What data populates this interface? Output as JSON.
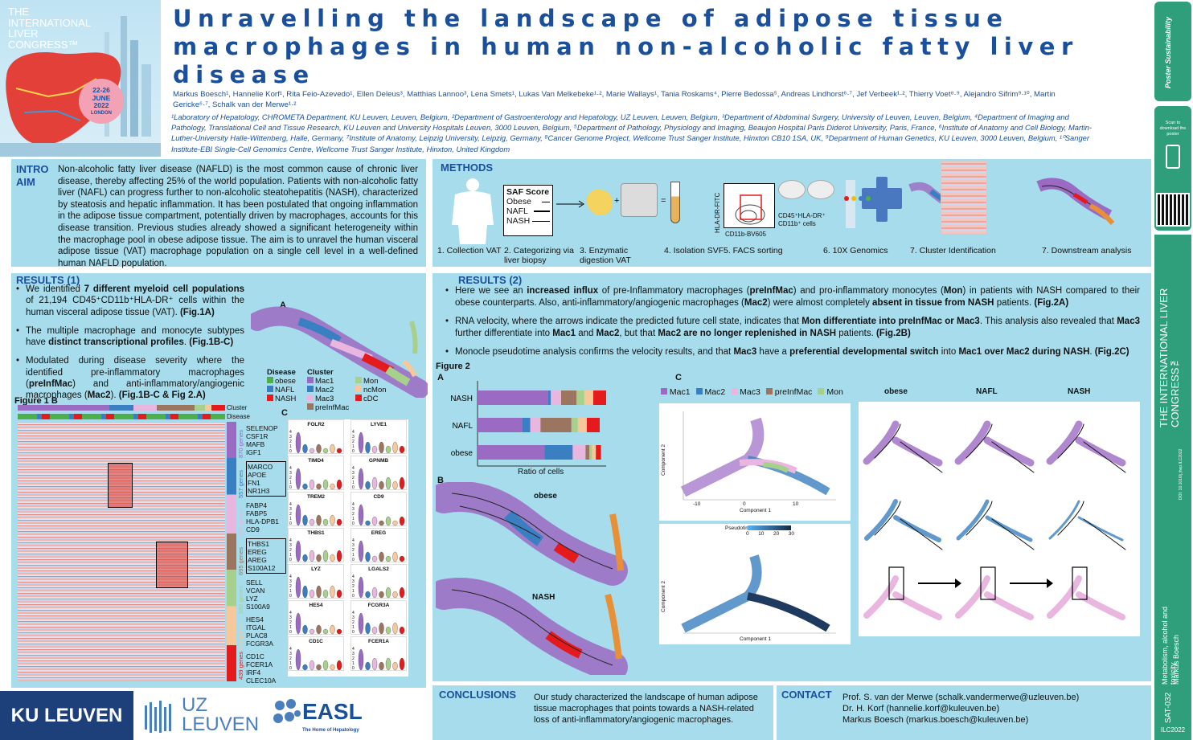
{
  "congress": {
    "line1": "THE",
    "line2": "INTERNATIONAL",
    "line3": "LIVER",
    "line4": "CONGRESS™",
    "dates": "22-26",
    "month": "JUNE",
    "year": "2022",
    "city": "LONDON"
  },
  "title": "Unravelling the landscape of adipose tissue macrophages in human non-alcoholic fatty liver disease",
  "authors": "Markus Boesch¹, Hannelie Korf¹, Rita Feio-Azevedo¹, Ellen Deleus³, Matthias Lannoo³, Lena Smets¹, Lukas Van Melkebeke¹·², Marie Wallays¹, Tania Roskams⁴, Pierre Bedossa⁵, Andreas Lindhorst⁶·⁷, Jef Verbeek¹·², Thierry Voet⁸·⁹, Alejandro Sifrim⁹·¹⁰, Martin Gericke⁶·⁷, Schalk van der Merwe¹·²",
  "affiliations": "¹Laboratory of Hepatology, CHROMETA Department, KU Leuven, Leuven, Belgium, ²Department of Gastroenterology and Hepatology, UZ Leuven, Leuven, Belgium, ³Department of Abdominal Surgery, University of Leuven, Leuven, Belgium, ⁴Department of Imaging and Pathology, Translational Cell and Tissue Research, KU Leuven and University Hospitals Leuven, 3000 Leuven, Belgium, ⁵Department of Pathology, Physiology and Imaging, Beaujon Hospital Paris Diderot University, Paris, France, ⁶Institute of Anatomy and Cell Biology, Martin-Luther-University Halle-Wittenberg, Halle, Germany, ⁷Institute of Anatomy, Leipzig University, Leipzig, Germany, ⁸Cancer Genome Project, Wellcome Trust Sanger Institute, Hinxton CB10 1SA, UK, ⁹Department of Human Genetics, KU Leuven, 3000 Leuven, Belgium, ¹⁰Sanger Institute-EBI Single-Cell Genomics Centre, Wellcome Trust Sanger Institute, Hinxton, United Kingdom",
  "sidebar": {
    "poster_brand": "Poster Sustainability",
    "scan_text": "Scan to download the poster",
    "congress_vertical": "THE INTERNATIONAL LIVER CONGRESS™",
    "doi": "DOI: 10.1016/j.jhep.ILC2022",
    "topic": "Metabolism, alcohol and toxicity",
    "author": "Markus Boesch",
    "code": "SAT-032",
    "ilc": "ILC2022"
  },
  "intro": {
    "heading1": "INTRO",
    "heading2": "AIM",
    "text": "Non-alcoholic fatty liver disease (NAFLD) is the most common cause of chronic liver disease, thereby affecting 25% of the world population. Patients with non-alcoholic fatty liver (NAFL) can progress further to non-alcoholic steatohepatitis (NASH), characterized by steatosis and hepatic inflammation. It has been postulated that ongoing inflammation in the adipose tissue compartment, potentially driven by macrophages, accounts for this disease transition. Previous studies already showed a significant heterogeneity within the macrophage pool in obese adipose tissue. The aim is to unravel the human visceral adipose tissue (VAT) macrophage population on a single cell level in a well-defined human NAFLD population."
  },
  "methods": {
    "heading": "METHODS",
    "saf_title": "SAF Score",
    "saf_rows": [
      "Obese",
      "NAFL",
      "NASH"
    ],
    "facs_y": "HLA-DR-FITC",
    "facs_x": "CD11b-BV605",
    "facs_gate": "CD45⁺HLA-DR⁺ CD11b⁺ cells",
    "steps": [
      "1. Collection VAT",
      "2. Categorizing via liver biopsy",
      "3. Enzymatic digestion VAT",
      "4. Isolation SVF",
      "5. FACS sorting",
      "6. 10X Genomics",
      "7. Cluster Identification",
      "7. Downstream analysis"
    ]
  },
  "results1": {
    "heading": "RESULTS (1)",
    "bullet1_pre": "We identified ",
    "bullet1_bold": "7 different myeloid cell populations",
    "bullet1_post": " of 21,194 CD45⁺CD11b⁺HLA-DR⁺ cells within the human visceral adipose tissue (VAT). ",
    "bullet1_ref": "(Fig.1A)",
    "bullet2_pre": "The multiple macrophage and monocyte subtypes have ",
    "bullet2_bold": "distinct transcriptional profiles",
    "bullet2_post": ". ",
    "bullet2_ref": "(Fig.1B-C)",
    "bullet3_pre": "Modulated during disease severity where the identified pre-inflammatory macrophages (",
    "bullet3_b1": "preInfMac",
    "bullet3_mid": ") and anti-inflammatory/angiogenic macrophages (",
    "bullet3_b2": "Mac2",
    "bullet3_post": "). ",
    "bullet3_ref": "(Fig.1B-C & Fig 2.A)",
    "fig1b": "Figure 1 B",
    "label_a": "A",
    "label_c": "C",
    "bar_cluster": "Cluster",
    "bar_disease": "Disease",
    "legend_disease_title": "Disease",
    "legend_disease": [
      "obese",
      "NAFL",
      "NASH"
    ],
    "legend_cluster_title": "Cluster",
    "legend_cluster": [
      "Mac1",
      "Mac2",
      "Mac3",
      "preInfMac",
      "Mon",
      "ncMon",
      "cDC"
    ],
    "gene_groups": [
      {
        "count": "870 genes",
        "genes": [
          "SELENOP",
          "CSF1R",
          "MAFB",
          "IGF1"
        ]
      },
      {
        "count": "557 genes",
        "genes": [
          "MARCO",
          "APOE",
          "FN1",
          "NR1H3"
        ]
      },
      {
        "count": "565 genes",
        "genes": [
          "FABP4",
          "FABP5",
          "HLA-DPB1",
          "CD9"
        ]
      },
      {
        "count": "695 genes",
        "genes": [
          "THBS1",
          "EREG",
          "AREG",
          "S100A12"
        ]
      },
      {
        "count": "582 genes",
        "genes": [
          "SELL",
          "VCAN",
          "LYZ",
          "S100A9"
        ]
      },
      {
        "count": "478 genes",
        "genes": [
          "HES4",
          "ITGAL",
          "PLAC8",
          "FCGR3A"
        ]
      },
      {
        "count": "439 genes",
        "genes": [
          "CD1C",
          "FCER1A",
          "IRF4",
          "CLEC10A"
        ]
      }
    ],
    "violin_genes": [
      "FOLR2",
      "LYVE1",
      "TIMD4",
      "GPNMB",
      "TREM2",
      "CD9",
      "THBS1",
      "EREG",
      "LYZ",
      "LGALS2",
      "HES4",
      "FCGR3A",
      "CD1C",
      "FCER1A"
    ],
    "violin_ticks": [
      "4",
      "3",
      "2",
      "1",
      "0"
    ]
  },
  "results2": {
    "heading": "RESULTS (2)",
    "b1_pre": "Here we see an ",
    "b1_bold1": "increased influx",
    "b1_mid1": " of pre-Inflammatory macrophages (",
    "b1_bold2": "preInfMac",
    "b1_mid2": ") and pro-inflammatory monocytes (",
    "b1_bold3": "Mon",
    "b1_mid3": ") in patients with NASH compared to their obese counterparts. Also, anti-inflammatory/angiogenic macrophages (",
    "b1_bold4": "Mac2",
    "b1_mid4": ") were almost completely ",
    "b1_bold5": "absent in tissue from NASH",
    "b1_post": " patients. ",
    "b1_ref": "(Fig.2A)",
    "b2_pre": "RNA velocity, where the arrows indicate the predicted future cell state, indicates that ",
    "b2_bold1": "Mon differentiate into preInfMac or Mac3",
    "b2_mid": ". This analysis also revealed that ",
    "b2_bold2": "Mac3",
    "b2_mid2": " further differentiate into ",
    "b2_bold3": "Mac1",
    "b2_and": " and ",
    "b2_bold4": "Mac2",
    "b2_mid3": ", but that ",
    "b2_bold5": "Mac2 are no longer replenished in NASH",
    "b2_post": " patients. ",
    "b2_ref": "(Fig.2B)",
    "b3_pre": "Monocle pseudotime analysis confirms the velocity results, and that ",
    "b3_bold1": "Mac3",
    "b3_mid": " have a ",
    "b3_bold2": "preferential developmental switch",
    "b3_mid2": " into ",
    "b3_bold3": "Mac1 over Mac2 during NASH",
    "b3_post": ". ",
    "b3_ref": "(Fig.2C)",
    "fig2": "Figure 2",
    "label_a": "A",
    "label_b": "B",
    "label_c": "C",
    "bar_xlabel": "Ratio of cells",
    "velocity_labels": [
      "obese",
      "NASH"
    ],
    "c_legend": [
      "Mac1",
      "Mac2",
      "Mac3",
      "preInfMac",
      "Mon"
    ],
    "c_cols": [
      "obese",
      "NAFL",
      "NASH"
    ],
    "comp1": "Component 1",
    "comp2": "Component 2",
    "pseudotime": "Pseudotime",
    "pt_ticks": [
      "0",
      "10",
      "20",
      "30"
    ],
    "axis_ticks": [
      "-10",
      "0",
      "10"
    ],
    "y_ticks": [
      "0",
      "2"
    ]
  },
  "chart_data": {
    "type": "bar",
    "orientation": "horizontal-stacked",
    "categories": [
      "NASH",
      "NAFL",
      "obese"
    ],
    "xlabel": "Ratio of cells",
    "series": [
      {
        "name": "Mac1",
        "color": "#9b6ac3",
        "values": [
          0.55,
          0.35,
          0.52
        ]
      },
      {
        "name": "Mac2",
        "color": "#3a7fc1",
        "values": [
          0.02,
          0.06,
          0.22
        ]
      },
      {
        "name": "Mac3",
        "color": "#e8b6df",
        "values": [
          0.08,
          0.08,
          0.1
        ]
      },
      {
        "name": "preInfMac",
        "color": "#9b7560",
        "values": [
          0.12,
          0.24,
          0.03
        ]
      },
      {
        "name": "Mon",
        "color": "#a8d08d",
        "values": [
          0.06,
          0.05,
          0.02
        ]
      },
      {
        "name": "ncMon",
        "color": "#f8c89a",
        "values": [
          0.07,
          0.07,
          0.03
        ]
      },
      {
        "name": "cDC",
        "color": "#e41a1c",
        "values": [
          0.1,
          0.1,
          0.04
        ]
      }
    ]
  },
  "conclusions": {
    "heading": "CONCLUSIONS",
    "text": "Our study characterized the landscape of human adipose tissue macrophages that points towards a NASH-related loss of anti-inflammatory/angiogenic macrophages."
  },
  "contact": {
    "heading": "CONTACT",
    "lines": [
      "Prof. S. van der Merwe (schalk.vandermerwe@uzleuven.be)",
      "Dr. H. Korf (hannelie.korf@kuleuven.be)",
      "Markus Boesch (markus.boesch@kuleuven.be)"
    ]
  },
  "logos": {
    "kuleuven": "KU LEUVEN",
    "uz1": "UZ",
    "uz2": "LEUVEN",
    "easl": "EASL",
    "easl_sub": "The Home of Hepatology"
  },
  "colors": {
    "panel": "#a6dceb",
    "heading": "#1a4f9c",
    "sidebar": "#2f9e7b"
  }
}
